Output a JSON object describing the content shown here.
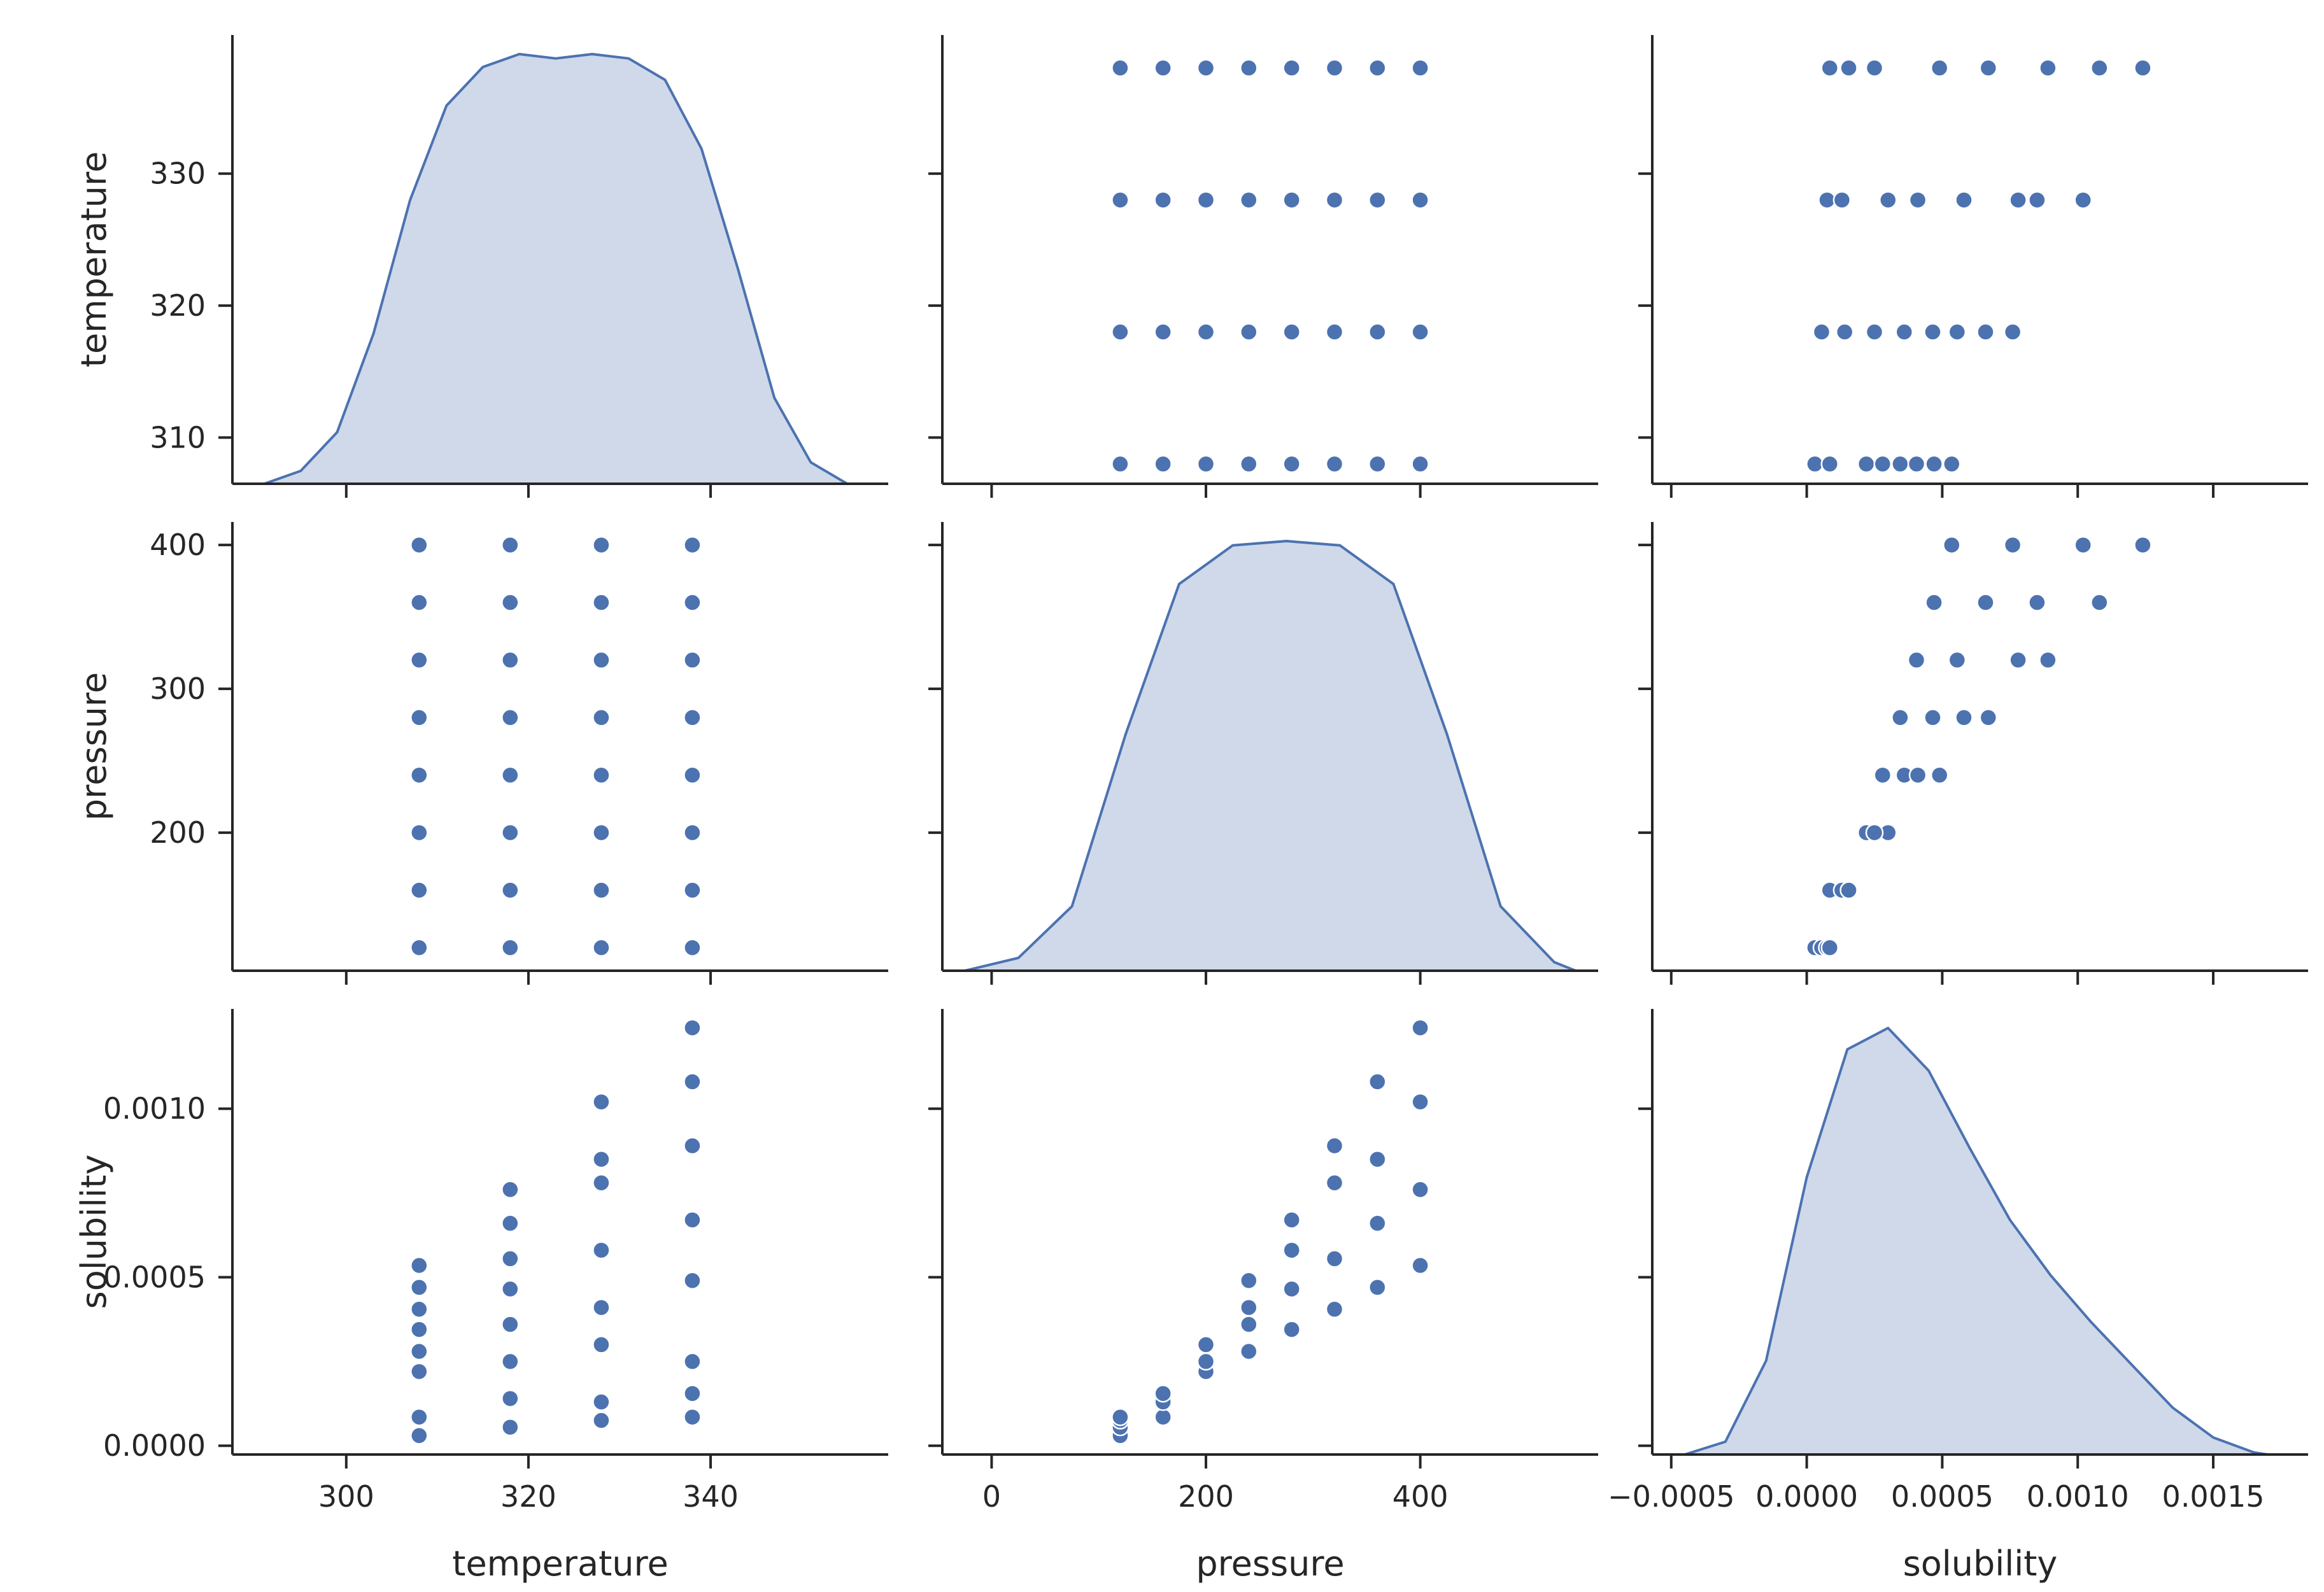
{
  "chart_data": {
    "type": "pairplot",
    "variables": [
      "temperature",
      "pressure",
      "solubility"
    ],
    "diag_kind": "kde",
    "colors": {
      "marker": "#4c72b0",
      "kde_line": "#4c72b0",
      "kde_fill": "#cfd9ea",
      "axis": "#262626"
    },
    "axes": {
      "temperature": {
        "label": "temperature",
        "xlim": [
          287.5,
          359.5
        ],
        "ylim": [
          306.5,
          340.5
        ],
        "xticks": [
          300,
          320,
          340
        ],
        "xtick_labels": [
          "300",
          "320",
          "340"
        ],
        "yticks": [
          310,
          320,
          330
        ],
        "ytick_labels": [
          "310",
          "320",
          "330"
        ]
      },
      "pressure": {
        "label": "pressure",
        "xlim": [
          -46,
          566
        ],
        "ylim": [
          104,
          416
        ],
        "xticks": [
          0,
          200,
          400
        ],
        "xtick_labels": [
          "0",
          "200",
          "400"
        ],
        "yticks": [
          200,
          300,
          400
        ],
        "ytick_labels": [
          "200",
          "300",
          "400"
        ]
      },
      "solubility": {
        "label": "solubility",
        "xlim": [
          -0.00057,
          0.00185
        ],
        "ylim": [
          -2.6e-05,
          0.001296
        ],
        "xticks": [
          -0.0005,
          0.0,
          0.0005,
          0.001,
          0.0015
        ],
        "xtick_labels": [
          "−0.0005",
          "0.0000",
          "0.0005",
          "0.0010",
          "0.0015"
        ],
        "yticks": [
          0.0,
          0.0005,
          0.001
        ],
        "ytick_labels": [
          "0.0000",
          "0.0005",
          "0.0010"
        ]
      }
    },
    "points": [
      {
        "temperature": 308,
        "pressure": 120,
        "solubility": 3e-05
      },
      {
        "temperature": 308,
        "pressure": 160,
        "solubility": 8.5e-05
      },
      {
        "temperature": 308,
        "pressure": 200,
        "solubility": 0.00022
      },
      {
        "temperature": 308,
        "pressure": 240,
        "solubility": 0.00028
      },
      {
        "temperature": 308,
        "pressure": 280,
        "solubility": 0.000345
      },
      {
        "temperature": 308,
        "pressure": 320,
        "solubility": 0.000405
      },
      {
        "temperature": 308,
        "pressure": 360,
        "solubility": 0.00047
      },
      {
        "temperature": 308,
        "pressure": 400,
        "solubility": 0.000535
      },
      {
        "temperature": 318,
        "pressure": 120,
        "solubility": 5.5e-05
      },
      {
        "temperature": 318,
        "pressure": 160,
        "solubility": 0.00014
      },
      {
        "temperature": 318,
        "pressure": 200,
        "solubility": 0.00025
      },
      {
        "temperature": 318,
        "pressure": 240,
        "solubility": 0.00036
      },
      {
        "temperature": 318,
        "pressure": 280,
        "solubility": 0.000465
      },
      {
        "temperature": 318,
        "pressure": 320,
        "solubility": 0.000555
      },
      {
        "temperature": 318,
        "pressure": 360,
        "solubility": 0.00066
      },
      {
        "temperature": 318,
        "pressure": 400,
        "solubility": 0.00076
      },
      {
        "temperature": 328,
        "pressure": 120,
        "solubility": 7.5e-05
      },
      {
        "temperature": 328,
        "pressure": 160,
        "solubility": 0.00013
      },
      {
        "temperature": 328,
        "pressure": 200,
        "solubility": 0.0003
      },
      {
        "temperature": 328,
        "pressure": 240,
        "solubility": 0.00041
      },
      {
        "temperature": 328,
        "pressure": 280,
        "solubility": 0.00058
      },
      {
        "temperature": 328,
        "pressure": 320,
        "solubility": 0.00078
      },
      {
        "temperature": 328,
        "pressure": 360,
        "solubility": 0.00085
      },
      {
        "temperature": 328,
        "pressure": 400,
        "solubility": 0.00102
      },
      {
        "temperature": 338,
        "pressure": 120,
        "solubility": 8.5e-05
      },
      {
        "temperature": 338,
        "pressure": 160,
        "solubility": 0.000155
      },
      {
        "temperature": 338,
        "pressure": 200,
        "solubility": 0.00025
      },
      {
        "temperature": 338,
        "pressure": 240,
        "solubility": 0.00049
      },
      {
        "temperature": 338,
        "pressure": 280,
        "solubility": 0.00067
      },
      {
        "temperature": 338,
        "pressure": 320,
        "solubility": 0.00089
      },
      {
        "temperature": 338,
        "pressure": 360,
        "solubility": 0.00108
      },
      {
        "temperature": 338,
        "pressure": 400,
        "solubility": 0.00124
      }
    ],
    "kde": {
      "temperature": {
        "x": [
          291,
          295,
          299,
          303,
          307,
          311,
          315,
          319,
          323,
          327,
          331,
          335,
          339,
          343,
          347,
          351,
          355
        ],
        "density": [
          0.0,
          0.03,
          0.12,
          0.35,
          0.66,
          0.88,
          0.97,
          1.0,
          0.99,
          1.0,
          0.99,
          0.94,
          0.78,
          0.5,
          0.2,
          0.05,
          0.0
        ]
      },
      "pressure": {
        "x": [
          -25,
          25,
          75,
          125,
          175,
          225,
          275,
          325,
          375,
          425,
          475,
          525,
          545
        ],
        "density": [
          0.0,
          0.03,
          0.15,
          0.55,
          0.9,
          0.99,
          1.0,
          0.99,
          0.9,
          0.55,
          0.15,
          0.02,
          0.0
        ]
      },
      "solubility": {
        "x": [
          -0.00045,
          -0.0003,
          -0.00015,
          0.0,
          0.00015,
          0.0003,
          0.00045,
          0.0006,
          0.00075,
          0.0009,
          0.00105,
          0.0012,
          0.00135,
          0.0015,
          0.00165,
          0.0017
        ],
        "density": [
          0.0,
          0.03,
          0.22,
          0.65,
          0.95,
          1.0,
          0.9,
          0.72,
          0.55,
          0.42,
          0.31,
          0.21,
          0.11,
          0.04,
          0.005,
          0.0
        ]
      }
    }
  }
}
